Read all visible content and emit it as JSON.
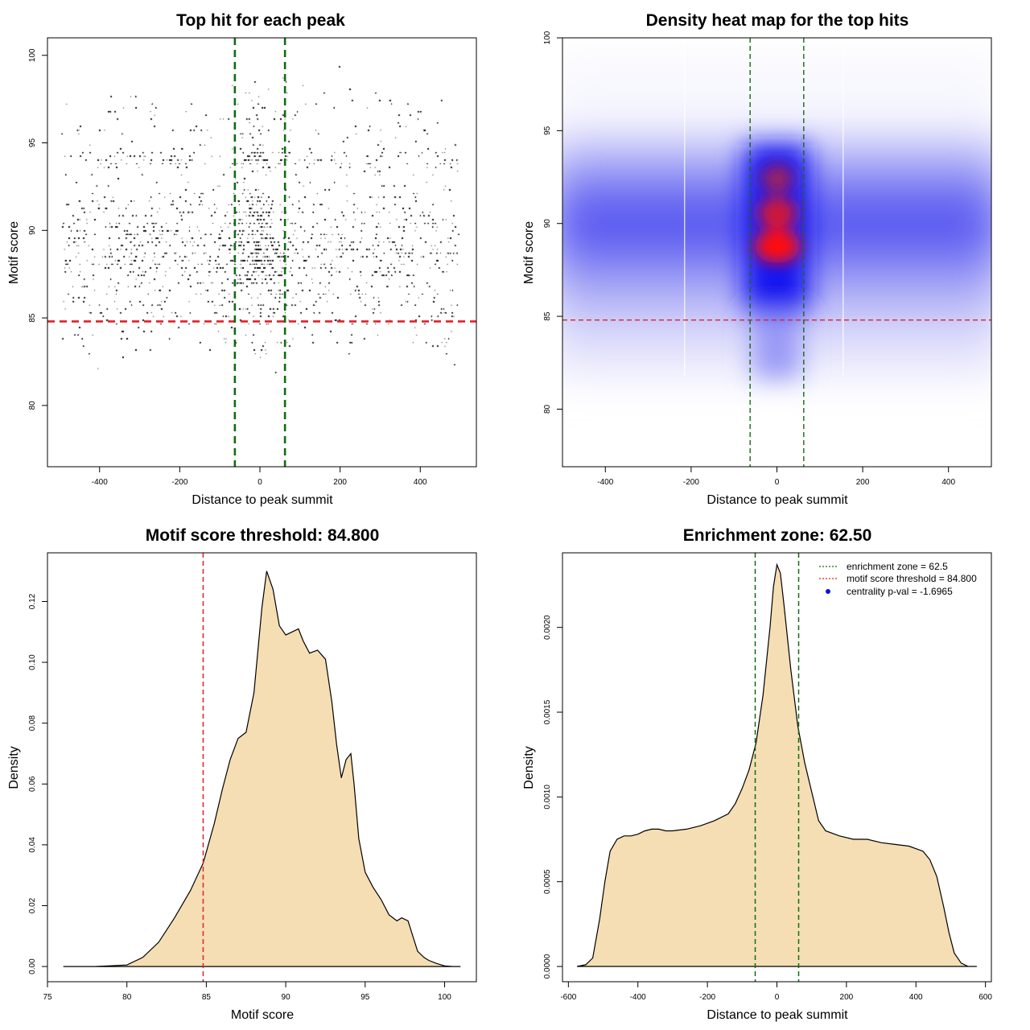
{
  "chart_data": [
    {
      "id": "scatter",
      "type": "scatter",
      "title": "Top hit for each peak",
      "xlabel": "Distance to peak summit",
      "ylabel": "Motif score",
      "xlim": [
        -530,
        540
      ],
      "ylim": [
        76.5,
        101
      ],
      "xticks": [
        -400,
        -200,
        0,
        200,
        400
      ],
      "yticks": [
        80,
        85,
        90,
        95,
        100
      ],
      "hlines": [
        {
          "y": 84.8,
          "color": "#e0202a",
          "style": "dashed"
        }
      ],
      "vlines": [
        {
          "x": -62.5,
          "color": "#116b11",
          "style": "dashed"
        },
        {
          "x": 62.5,
          "color": "#116b11",
          "style": "dashed"
        }
      ],
      "points_description": "about 20000 peaks; distance uniform in [-500, 500] with a central concentration; score distribution as in the motif score density panel"
    },
    {
      "id": "heatmap",
      "type": "heatmap",
      "title": "Density heat map for the top hits",
      "xlabel": "Distance to peak summit",
      "ylabel": "Motif score",
      "xlim": [
        -500,
        500
      ],
      "ylim": [
        76.9,
        100
      ],
      "xticks": [
        -400,
        -200,
        0,
        200,
        400
      ],
      "yticks": [
        80,
        85,
        90,
        95,
        100
      ],
      "hlines": [
        {
          "y": 84.8,
          "color": "#e0202a",
          "style": "dashed"
        }
      ],
      "vlines": [
        {
          "x": -62.5,
          "color": "#116b11",
          "style": "dashed"
        },
        {
          "x": 62.5,
          "color": "#116b11",
          "style": "dashed"
        }
      ],
      "hot_spots": [
        {
          "x": 0,
          "y": 88.8,
          "level": "high"
        },
        {
          "x": 0,
          "y": 90.6,
          "level": "high"
        },
        {
          "x": 0,
          "y": 92.7,
          "level": "medium"
        }
      ]
    },
    {
      "id": "scoredensity",
      "type": "area",
      "title": "Motif score threshold: 84.800",
      "xlabel": "Motif score",
      "ylabel": "Density",
      "xlim": [
        75,
        102
      ],
      "ylim": [
        -0.005,
        0.136
      ],
      "xticks": [
        75,
        80,
        85,
        90,
        95,
        100
      ],
      "yticks": [
        0.0,
        0.02,
        0.04,
        0.06,
        0.08,
        0.1,
        0.12
      ],
      "ytick_labels": [
        "0.00",
        "0.02",
        "0.04",
        "0.06",
        "0.08",
        "0.10",
        "0.12"
      ],
      "fill": "#f5deb3",
      "vlines": [
        {
          "x": 84.8,
          "color": "#e0202a",
          "style": "dashed"
        }
      ],
      "x": [
        76.0,
        78.0,
        80.0,
        81.0,
        82.0,
        83.0,
        84.0,
        84.8,
        85.5,
        86.0,
        86.5,
        87.0,
        87.5,
        88.0,
        88.5,
        88.8,
        89.2,
        89.6,
        90.0,
        90.4,
        90.8,
        91.1,
        91.5,
        92.0,
        92.5,
        92.9,
        93.2,
        93.5,
        93.8,
        94.1,
        94.3,
        94.6,
        95.0,
        95.5,
        96.0,
        96.5,
        97.0,
        97.3,
        97.7,
        98.0,
        98.3,
        98.7,
        99.0,
        99.5,
        100.0,
        100.5,
        101.0
      ],
      "values": [
        0.0,
        0.0,
        0.0005,
        0.003,
        0.008,
        0.016,
        0.025,
        0.034,
        0.047,
        0.058,
        0.068,
        0.075,
        0.077,
        0.09,
        0.118,
        0.13,
        0.124,
        0.112,
        0.109,
        0.11,
        0.111,
        0.107,
        0.103,
        0.104,
        0.101,
        0.087,
        0.073,
        0.062,
        0.068,
        0.07,
        0.06,
        0.042,
        0.031,
        0.026,
        0.022,
        0.017,
        0.015,
        0.016,
        0.015,
        0.01,
        0.005,
        0.003,
        0.002,
        0.001,
        0.0002,
        0.0,
        0.0
      ]
    },
    {
      "id": "distdensity",
      "type": "area",
      "title": "Enrichment zone: 62.50",
      "xlabel": "Distance to peak summit",
      "ylabel": "Density",
      "xlim": [
        -617,
        617
      ],
      "ylim": [
        -9e-05,
        0.00244
      ],
      "xticks": [
        -600,
        -400,
        -200,
        0,
        200,
        400,
        600
      ],
      "yticks": [
        0.0,
        0.0005,
        0.001,
        0.0015,
        0.002
      ],
      "ytick_labels": [
        "0.0000",
        "0.0005",
        "0.0010",
        "0.0015",
        "0.0020"
      ],
      "fill": "#f5deb3",
      "vlines": [
        {
          "x": -62.5,
          "color": "#116b11",
          "style": "dashed"
        },
        {
          "x": 62.5,
          "color": "#116b11",
          "style": "dashed"
        }
      ],
      "x": [
        -575,
        -550,
        -530,
        -510,
        -495,
        -480,
        -460,
        -440,
        -420,
        -400,
        -380,
        -360,
        -340,
        -320,
        -300,
        -260,
        -220,
        -180,
        -140,
        -120,
        -100,
        -80,
        -60,
        -40,
        -20,
        -10,
        0,
        10,
        20,
        40,
        60,
        80,
        100,
        120,
        140,
        180,
        220,
        260,
        300,
        340,
        380,
        420,
        440,
        460,
        480,
        495,
        510,
        530,
        550,
        575
      ],
      "values": [
        0.0,
        1e-05,
        5e-05,
        0.00028,
        0.0005,
        0.00068,
        0.00075,
        0.00077,
        0.00077,
        0.00078,
        0.0008,
        0.00081,
        0.00081,
        0.0008,
        0.0008,
        0.00081,
        0.00083,
        0.00086,
        0.0009,
        0.00096,
        0.00105,
        0.00116,
        0.00132,
        0.0016,
        0.002,
        0.00224,
        0.00237,
        0.00232,
        0.00214,
        0.00175,
        0.00142,
        0.0012,
        0.00103,
        0.00086,
        0.0008,
        0.00077,
        0.00075,
        0.00075,
        0.00073,
        0.00072,
        0.00071,
        0.00068,
        0.00063,
        0.00053,
        0.00035,
        0.0002,
        8e-05,
        2e-05,
        0.0,
        0.0
      ],
      "legend": {
        "position": "top-right",
        "entries": [
          {
            "label": "enrichment zone = 62.5",
            "color": "#116b11",
            "kind": "dotted-line"
          },
          {
            "label": "motif score threshold = 84.800",
            "color": "#e0202a",
            "kind": "dotted-line"
          },
          {
            "label": "centrality p-val = -1.6965",
            "color": "#1010e0",
            "kind": "point"
          }
        ]
      }
    }
  ]
}
